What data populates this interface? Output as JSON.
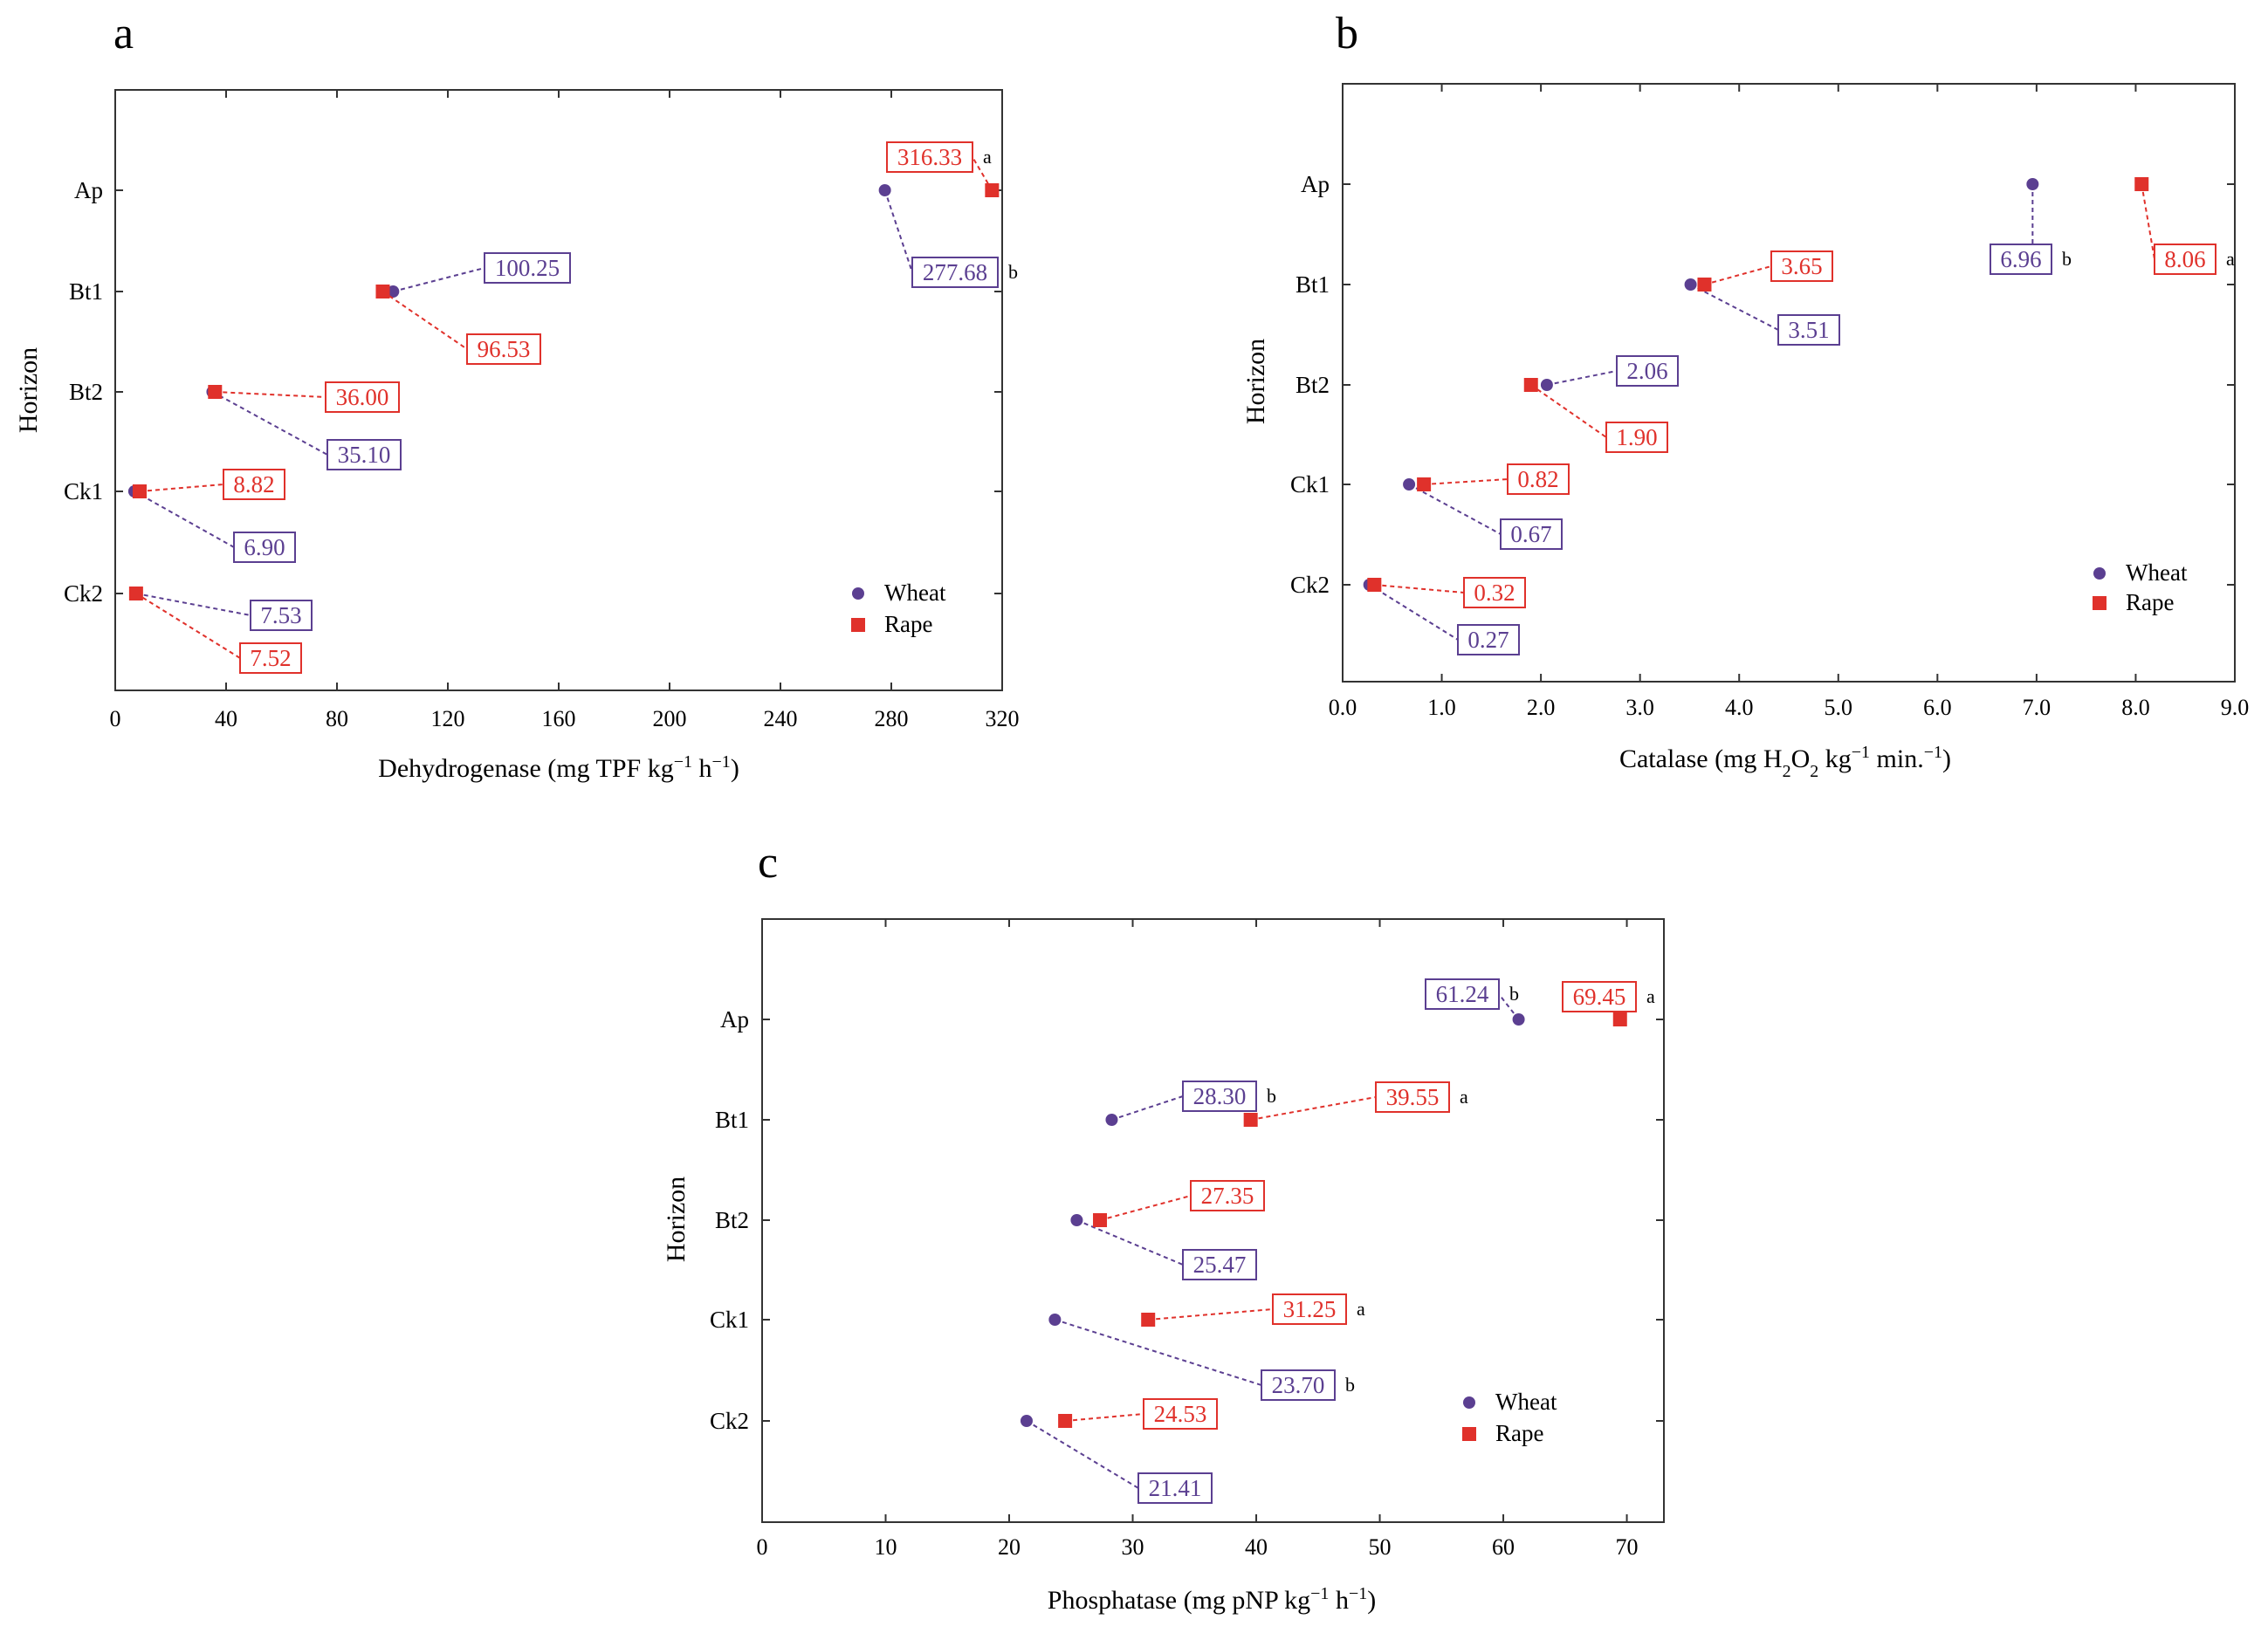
{
  "colors": {
    "wheat": "#5b3f91",
    "rape": "#e0312b",
    "axis": "#333333"
  },
  "legend": {
    "wheat": "Wheat",
    "rape": "Rape"
  },
  "y_label": "Horizon",
  "chart_data": [
    {
      "panel": "a",
      "type": "scatter",
      "categories": [
        "Ap",
        "Bt1",
        "Bt2",
        "Ck1",
        "Ck2"
      ],
      "xlabel": {
        "main": "Dehydrogenase (mg TPF kg",
        "sup1": "−1",
        "mid": " h",
        "sup2": "−1",
        "end": ")"
      },
      "xlim": [
        0,
        320
      ],
      "xticks": [
        0,
        40,
        80,
        120,
        160,
        200,
        240,
        280,
        320
      ],
      "xtick_labels": [
        "0",
        "40",
        "80",
        "120",
        "160",
        "200",
        "240",
        "280",
        "320"
      ],
      "series": [
        {
          "name": "Wheat",
          "values": [
            277.68,
            100.25,
            35.1,
            6.9,
            7.53
          ],
          "labels": [
            "277.68",
            "100.25",
            "35.10",
            "6.90",
            "7.53"
          ],
          "sig": [
            "b",
            "",
            "",
            "",
            ""
          ]
        },
        {
          "name": "Rape",
          "values": [
            316.33,
            96.53,
            36.0,
            8.82,
            7.52
          ],
          "labels": [
            "316.33",
            "96.53",
            "36.00",
            "8.82",
            "7.52"
          ],
          "sig": [
            "a",
            "",
            "",
            "",
            ""
          ]
        }
      ],
      "legend_position": "bottom-right"
    },
    {
      "panel": "b",
      "type": "scatter",
      "categories": [
        "Ap",
        "Bt1",
        "Bt2",
        "Ck1",
        "Ck2"
      ],
      "xlabel": {
        "main": "Catalase (mg H",
        "sub": "2",
        "mid": "O",
        "sub2": "2",
        "mid2": " kg",
        "sup": "−1",
        "end": " min.",
        "sup2": "−1",
        "end2": ")"
      },
      "xlim": [
        0,
        9
      ],
      "xticks": [
        0,
        1,
        2,
        3,
        4,
        5,
        6,
        7,
        8,
        9
      ],
      "xtick_labels": [
        "0.0",
        "1.0",
        "2.0",
        "3.0",
        "4.0",
        "5.0",
        "6.0",
        "7.0",
        "8.0",
        "9.0"
      ],
      "series": [
        {
          "name": "Wheat",
          "values": [
            6.96,
            3.51,
            2.06,
            0.67,
            0.27
          ],
          "labels": [
            "6.96",
            "3.51",
            "2.06",
            "0.67",
            "0.27"
          ],
          "sig": [
            "b",
            "",
            "",
            "",
            ""
          ]
        },
        {
          "name": "Rape",
          "values": [
            8.06,
            3.65,
            1.9,
            0.82,
            0.32
          ],
          "labels": [
            "8.06",
            "3.65",
            "1.90",
            "0.82",
            "0.32"
          ],
          "sig": [
            "a",
            "",
            "",
            "",
            ""
          ]
        }
      ],
      "legend_position": "bottom-right"
    },
    {
      "panel": "c",
      "type": "scatter",
      "categories": [
        "Ap",
        "Bt1",
        "Bt2",
        "Ck1",
        "Ck2"
      ],
      "xlabel": {
        "main": "Phosphatase (mg pNP kg",
        "sup1": "−1",
        "mid": " h",
        "sup2": "−1",
        "end": ")"
      },
      "xlim": [
        0,
        73
      ],
      "xticks": [
        0,
        10,
        20,
        30,
        40,
        50,
        60,
        70
      ],
      "xtick_labels": [
        "0",
        "10",
        "20",
        "30",
        "40",
        "50",
        "60",
        "70"
      ],
      "series": [
        {
          "name": "Wheat",
          "values": [
            61.24,
            28.3,
            25.47,
            23.7,
            21.41
          ],
          "labels": [
            "61.24",
            "28.30",
            "25.47",
            "23.70",
            "21.41"
          ],
          "sig": [
            "b",
            "b",
            "",
            "b",
            ""
          ]
        },
        {
          "name": "Rape",
          "values": [
            69.45,
            39.55,
            27.35,
            31.25,
            24.53
          ],
          "labels": [
            "69.45",
            "39.55",
            "27.35",
            "31.25",
            "24.53"
          ],
          "sig": [
            "a",
            "a",
            "",
            "a",
            ""
          ]
        }
      ],
      "legend_position": "bottom-right"
    }
  ]
}
